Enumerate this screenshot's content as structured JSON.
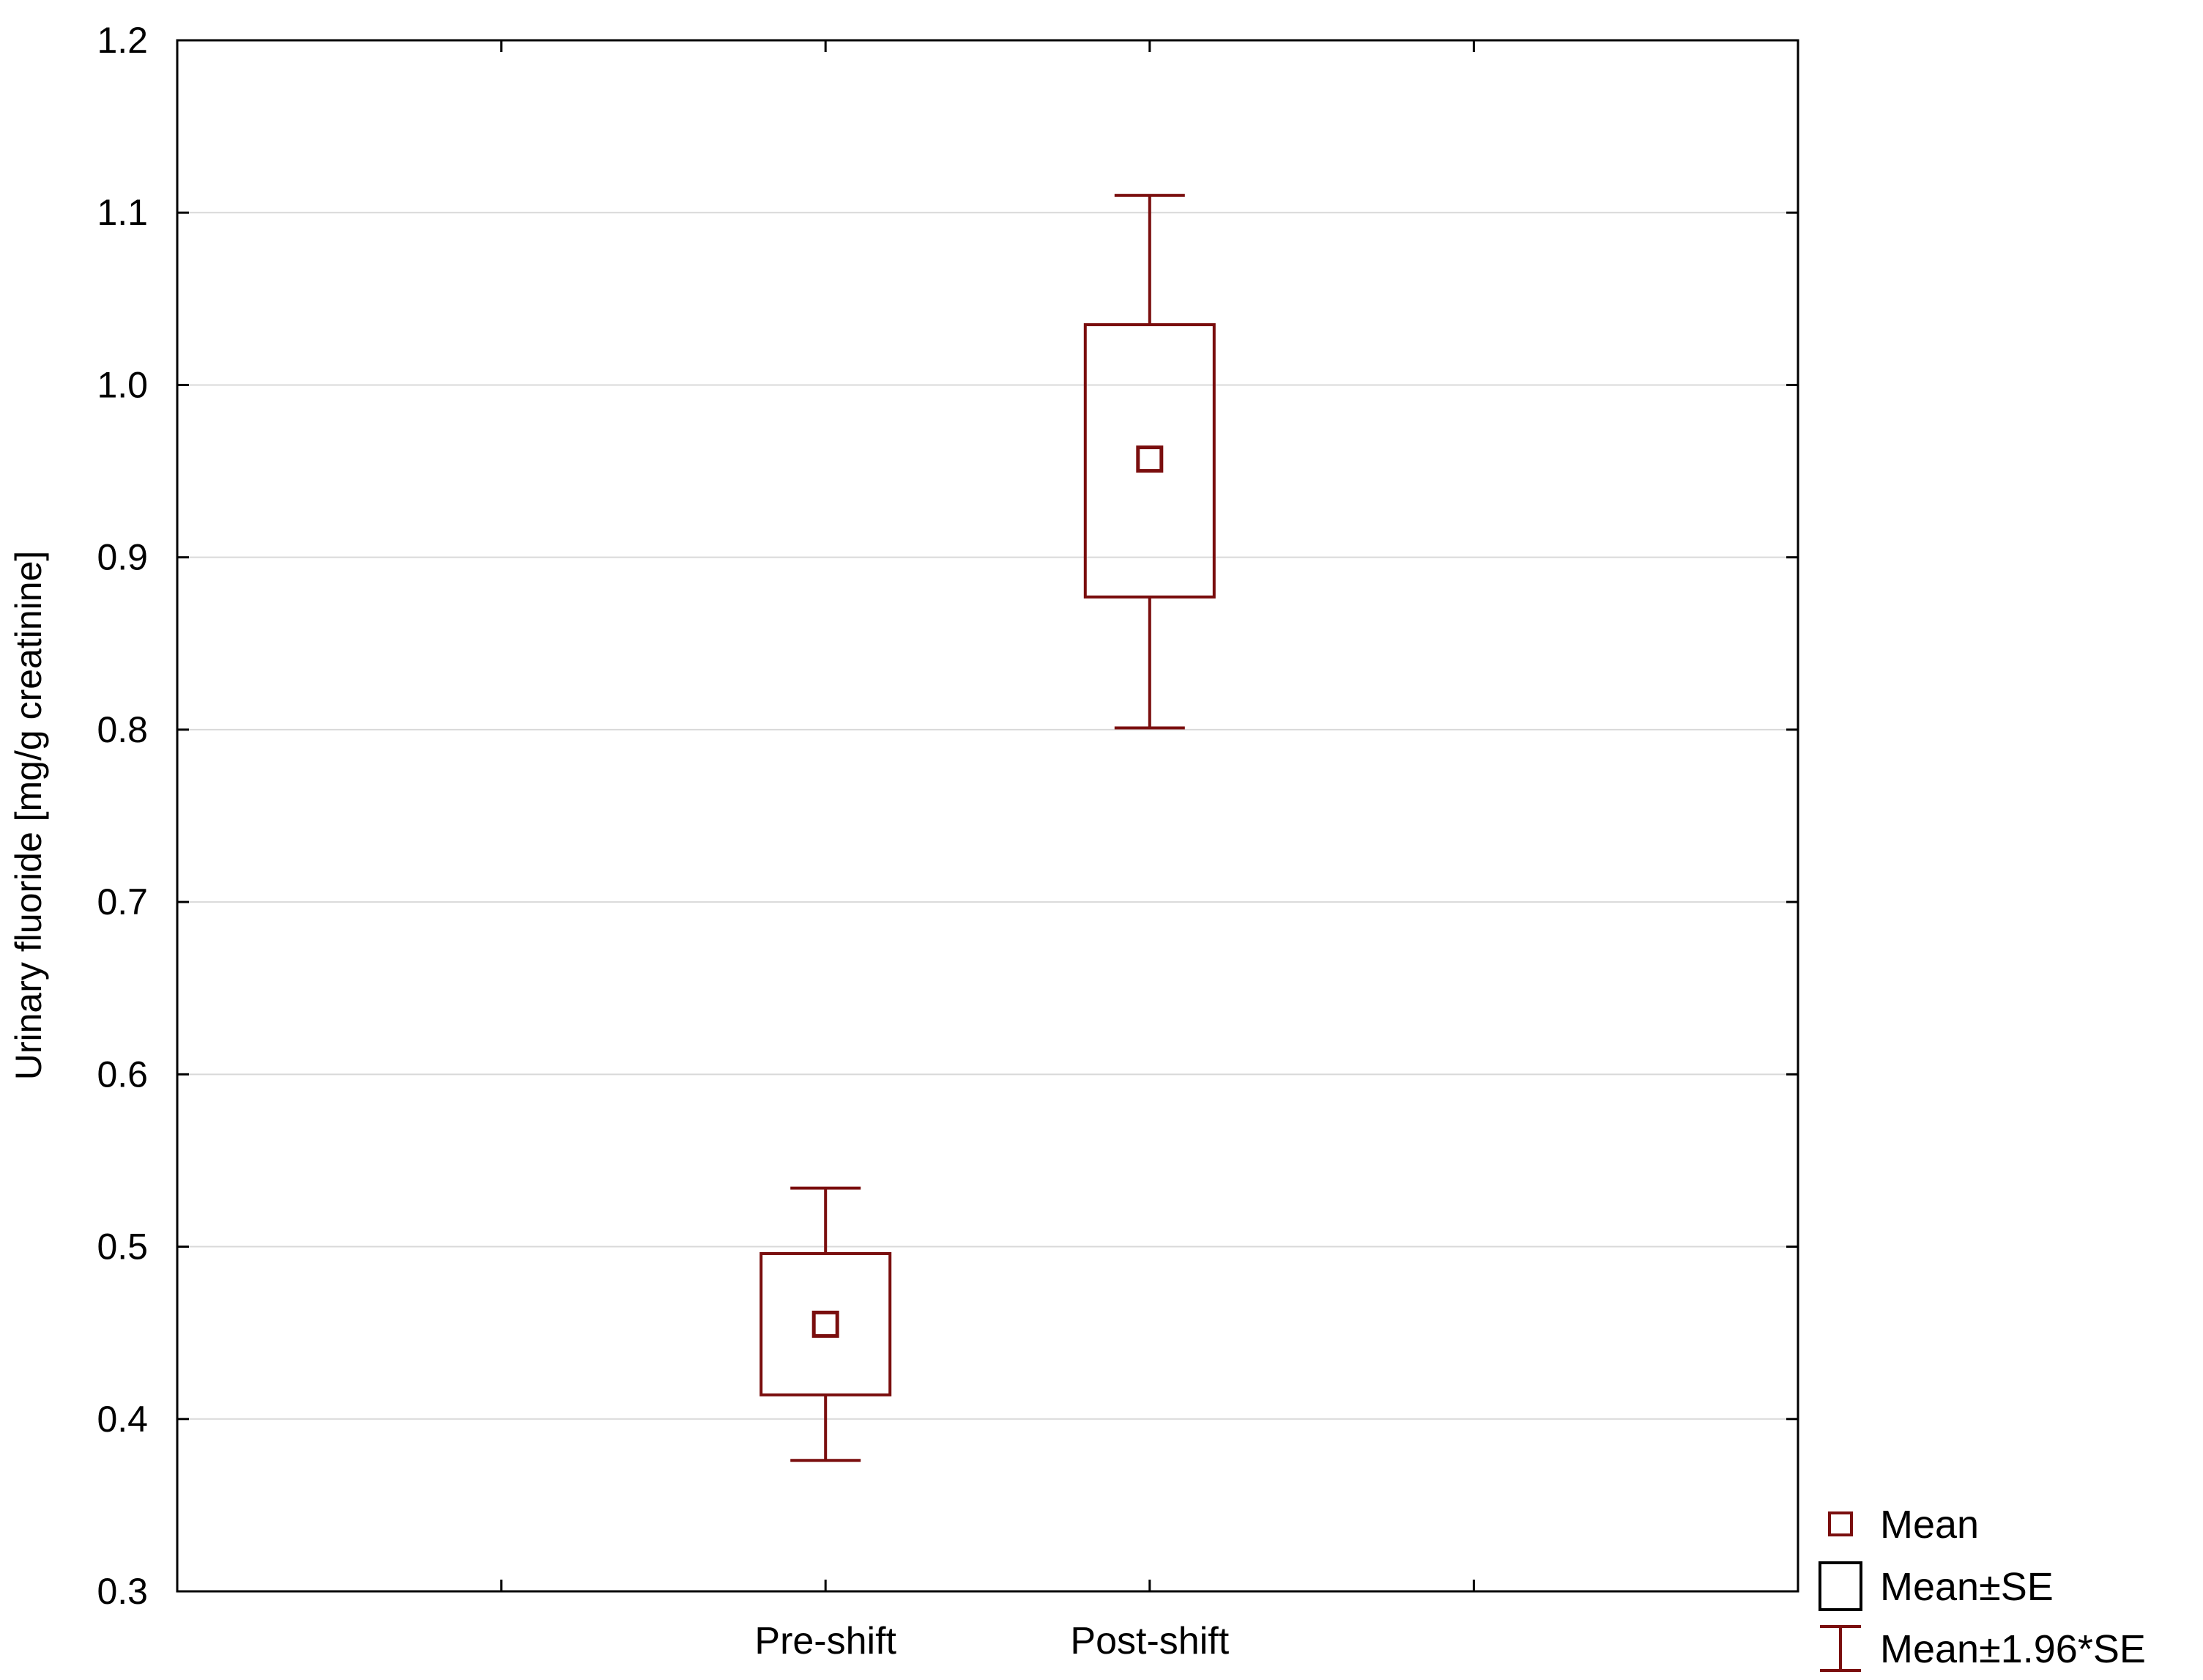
{
  "chart_data": {
    "type": "box",
    "xlabel": "",
    "ylabel": "Urinary fluoride [mg/g creatinine]",
    "ylim": [
      0.3,
      1.2
    ],
    "yticks": [
      0.3,
      0.4,
      0.5,
      0.6,
      0.7,
      0.8,
      0.9,
      1.0,
      1.1,
      1.2
    ],
    "ytick_labels": [
      "0.3",
      "0.4",
      "0.5",
      "0.6",
      "0.7",
      "0.8",
      "0.9",
      "1.0",
      "1.1",
      "1.2"
    ],
    "x_slots": 5,
    "categories": [
      "Pre-shift",
      "Post-shift"
    ],
    "category_slots": [
      2,
      3
    ],
    "series": [
      {
        "category": "Pre-shift",
        "mean": 0.455,
        "se_low": 0.414,
        "se_high": 0.496,
        "ci_low": 0.376,
        "ci_high": 0.534
      },
      {
        "category": "Post-shift",
        "mean": 0.957,
        "se_low": 0.877,
        "se_high": 1.035,
        "ci_low": 0.801,
        "ci_high": 1.11
      }
    ],
    "grid": "horizontal",
    "legend_position": "bottom-right",
    "legend": [
      {
        "symbol": "square-marker",
        "label": "Mean"
      },
      {
        "symbol": "box",
        "label": "Mean±SE"
      },
      {
        "symbol": "whisker",
        "label": "Mean±1.96*SE"
      }
    ],
    "colors": {
      "series": "#7a0e0e",
      "grid": "#d9d9d9",
      "axis": "#000000",
      "background": "#ffffff"
    }
  }
}
